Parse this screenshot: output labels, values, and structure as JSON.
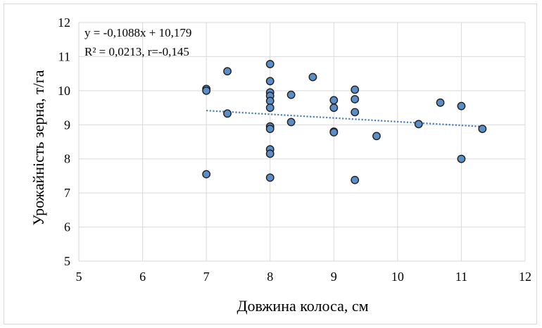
{
  "chart_data": {
    "type": "scatter",
    "xlabel": "Довжина колоса, см",
    "ylabel": "Урожайність зерна, т/га",
    "xlim": [
      5,
      12
    ],
    "ylim": [
      5,
      12
    ],
    "xticks": [
      "5",
      "6",
      "7",
      "8",
      "9",
      "10",
      "11",
      "12"
    ],
    "yticks": [
      "5",
      "6",
      "7",
      "8",
      "9",
      "10",
      "11",
      "12"
    ],
    "grid": true,
    "legend": "none",
    "marker_color": "#5b8ec9",
    "marker_edge": "#1f1f1f",
    "trendline_color": "#4a7fb8",
    "equation_line1": "y = -0,1088x + 10,179",
    "equation_line2": "R² = 0,0213, r=-0,145",
    "trendline": {
      "slope": -0.1088,
      "intercept": 10.179,
      "x_range": [
        7,
        11.33
      ]
    },
    "points": [
      {
        "x": 7.0,
        "y": 10.05
      },
      {
        "x": 7.0,
        "y": 10.0
      },
      {
        "x": 7.0,
        "y": 7.55
      },
      {
        "x": 7.33,
        "y": 10.57
      },
      {
        "x": 7.33,
        "y": 9.33
      },
      {
        "x": 8.0,
        "y": 10.78
      },
      {
        "x": 8.0,
        "y": 10.28
      },
      {
        "x": 8.0,
        "y": 9.95
      },
      {
        "x": 8.0,
        "y": 9.85
      },
      {
        "x": 8.0,
        "y": 9.7
      },
      {
        "x": 8.0,
        "y": 9.5
      },
      {
        "x": 8.0,
        "y": 8.95
      },
      {
        "x": 8.0,
        "y": 8.88
      },
      {
        "x": 8.0,
        "y": 8.28
      },
      {
        "x": 8.0,
        "y": 8.15
      },
      {
        "x": 8.0,
        "y": 7.45
      },
      {
        "x": 8.33,
        "y": 9.88
      },
      {
        "x": 8.33,
        "y": 9.08
      },
      {
        "x": 8.67,
        "y": 10.4
      },
      {
        "x": 9.0,
        "y": 9.72
      },
      {
        "x": 9.0,
        "y": 9.5
      },
      {
        "x": 9.0,
        "y": 8.8
      },
      {
        "x": 9.0,
        "y": 8.78
      },
      {
        "x": 9.33,
        "y": 10.03
      },
      {
        "x": 9.33,
        "y": 9.75
      },
      {
        "x": 9.33,
        "y": 9.37
      },
      {
        "x": 9.33,
        "y": 7.38
      },
      {
        "x": 9.67,
        "y": 8.67
      },
      {
        "x": 10.33,
        "y": 9.02
      },
      {
        "x": 10.67,
        "y": 9.65
      },
      {
        "x": 11.0,
        "y": 9.55
      },
      {
        "x": 11.0,
        "y": 8.0
      },
      {
        "x": 11.33,
        "y": 8.88
      }
    ]
  }
}
